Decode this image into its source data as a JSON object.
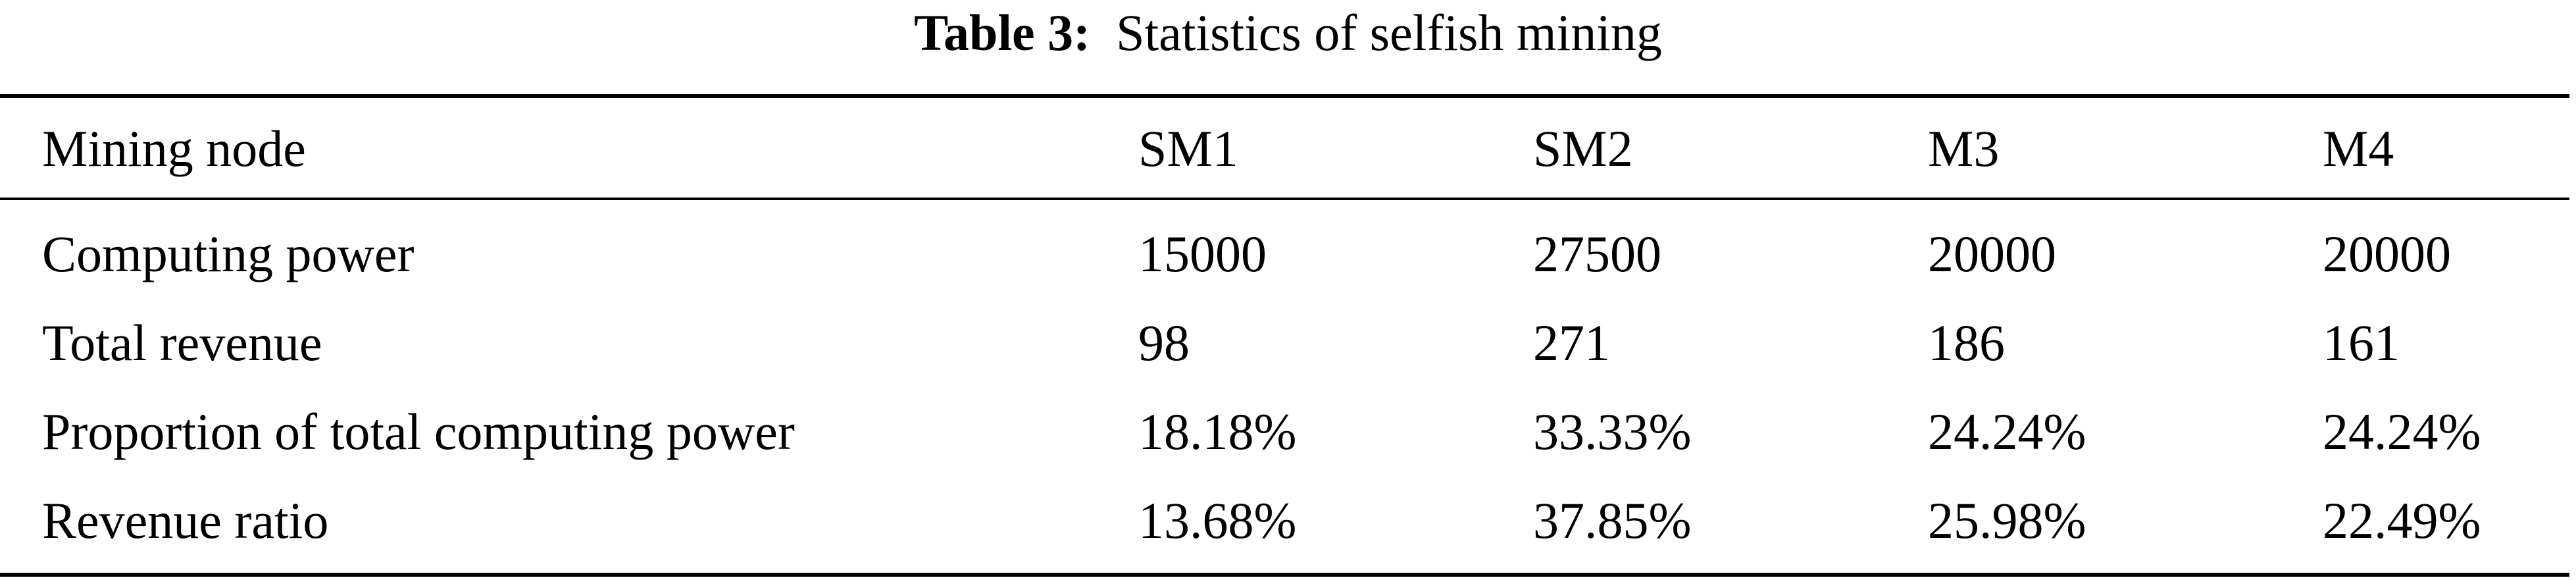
{
  "caption": {
    "label": "Table 3:",
    "title": "Statistics of selfish mining"
  },
  "table": {
    "headers": [
      "Mining node",
      "SM1",
      "SM2",
      "M3",
      "M4"
    ],
    "rows": [
      [
        "Computing power",
        "15000",
        "27500",
        "20000",
        "20000"
      ],
      [
        "Total revenue",
        "98",
        "271",
        "186",
        "161"
      ],
      [
        "Proportion of total computing power",
        "18.18%",
        "33.33%",
        "24.24%",
        "24.24%"
      ],
      [
        "Revenue ratio",
        "13.68%",
        "37.85%",
        "25.98%",
        "22.49%"
      ]
    ]
  }
}
